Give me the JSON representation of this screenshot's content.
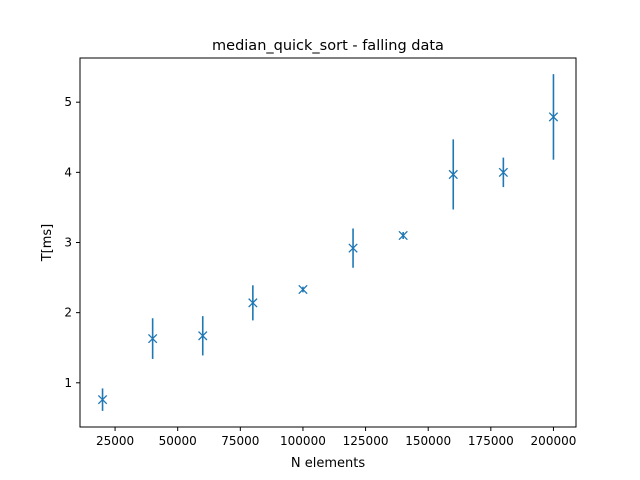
{
  "chart_data": {
    "type": "scatter",
    "title": "median_quick_sort - falling data",
    "xlabel": "N elements",
    "ylabel": "T[ms]",
    "xlim": [
      11000,
      209000
    ],
    "ylim": [
      0.37,
      5.63
    ],
    "xticks": [
      25000,
      50000,
      75000,
      100000,
      125000,
      150000,
      175000,
      200000
    ],
    "xtick_labels": [
      "25000",
      "50000",
      "75000",
      "100000",
      "125000",
      "150000",
      "175000",
      "200000"
    ],
    "yticks": [
      1,
      2,
      3,
      4,
      5
    ],
    "ytick_labels": [
      "1",
      "2",
      "3",
      "4",
      "5"
    ],
    "grid": false,
    "marker": "x",
    "color": "#1f77b4",
    "series": [
      {
        "x": [
          20000,
          40000,
          60000,
          80000,
          100000,
          120000,
          140000,
          160000,
          180000,
          200000
        ],
        "y": [
          0.76,
          1.63,
          1.67,
          2.14,
          2.33,
          2.92,
          3.1,
          3.97,
          4.0,
          4.79
        ],
        "yerr": [
          0.16,
          0.29,
          0.28,
          0.25,
          0.04,
          0.28,
          0.05,
          0.5,
          0.21,
          0.61
        ]
      }
    ]
  }
}
